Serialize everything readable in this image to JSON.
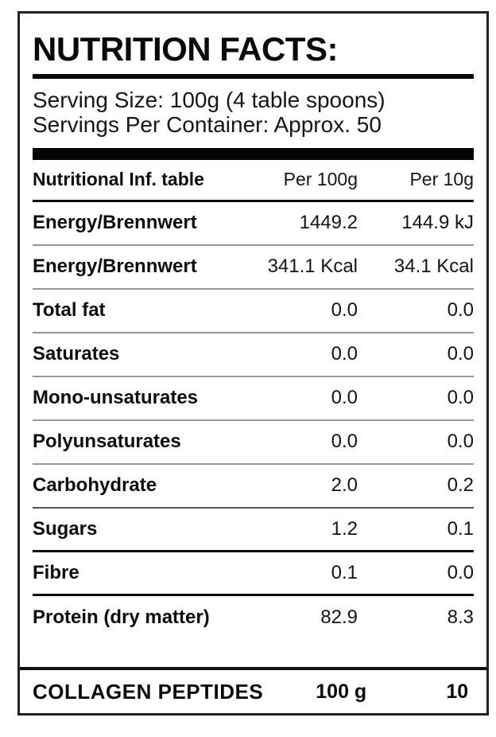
{
  "label": {
    "title": "NUTRITION FACTS:",
    "serving_size": "Serving Size: 100g (4 table spoons)",
    "servings_per_container": "Servings Per Container: Approx. 50"
  },
  "table": {
    "columns": [
      "Nutritional Inf. table",
      "Per 100g",
      "Per 10g"
    ],
    "rows": [
      {
        "label": "Energy/Brennwert",
        "per_100g": "1449.2",
        "per_10g": "144.9 kJ"
      },
      {
        "label": "Energy/Brennwert",
        "per_100g": "341.1 Kcal",
        "per_10g": "34.1 Kcal"
      },
      {
        "label": "Total fat",
        "per_100g": "0.0",
        "per_10g": "0.0"
      },
      {
        "label": "Saturates",
        "per_100g": "0.0",
        "per_10g": "0.0"
      },
      {
        "label": "Mono-unsaturates",
        "per_100g": "0.0",
        "per_10g": "0.0"
      },
      {
        "label": "Polyunsaturates",
        "per_100g": "0.0",
        "per_10g": "0.0"
      },
      {
        "label": "Carbohydrate",
        "per_100g": "2.0",
        "per_10g": "0.2"
      },
      {
        "label": "Sugars",
        "per_100g": "1.2",
        "per_10g": "0.1"
      },
      {
        "label": "Fibre",
        "per_100g": "0.1",
        "per_10g": "0.0"
      },
      {
        "label": "Protein (dry matter)",
        "per_100g": "82.9",
        "per_10g": "8.3"
      }
    ]
  },
  "footer": {
    "label": "COLLAGEN PEPTIDES",
    "per_100g": "100 g",
    "per_10g": "10"
  },
  "colors": {
    "text": "#111111",
    "border": "#222222",
    "divider_light": "#979797",
    "divider_dark": "#0d0d0d",
    "bar": "#050505",
    "background": "#ffffff"
  }
}
